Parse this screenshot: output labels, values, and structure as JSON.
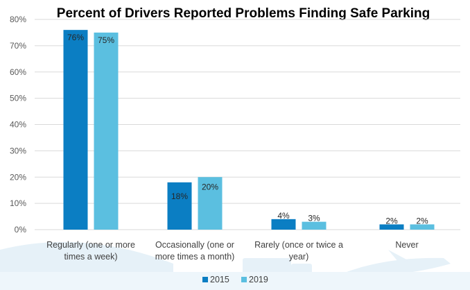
{
  "colors": {
    "series_2015": "#0b7ec3",
    "series_2019": "#5bbfe0",
    "grid": "#d9d9d9",
    "background_decoration": "#e3f0f8"
  },
  "chart_data": {
    "type": "bar",
    "title": "Percent of Drivers Reported Problems Finding Safe Parking",
    "xlabel": "",
    "ylabel": "",
    "ylim": [
      0,
      80
    ],
    "yticks": [
      0,
      10,
      20,
      30,
      40,
      50,
      60,
      70,
      80
    ],
    "ytick_labels": [
      "0%",
      "10%",
      "20%",
      "30%",
      "40%",
      "50%",
      "60%",
      "70%",
      "80%"
    ],
    "grid": true,
    "legend_position": "bottom",
    "categories": [
      [
        "Regularly (one or more",
        "times a week)"
      ],
      [
        "Occasionally (one or",
        "more times a month)"
      ],
      [
        "Rarely (once or twice a",
        "year)"
      ],
      [
        "Never"
      ]
    ],
    "series": [
      {
        "name": "2015",
        "values": [
          76,
          18,
          4,
          2
        ],
        "labels": [
          "76%",
          "18%",
          "4%",
          "2%"
        ]
      },
      {
        "name": "2019",
        "values": [
          75,
          20,
          3,
          2
        ],
        "labels": [
          "75%",
          "20%",
          "3%",
          "2%"
        ]
      }
    ]
  }
}
